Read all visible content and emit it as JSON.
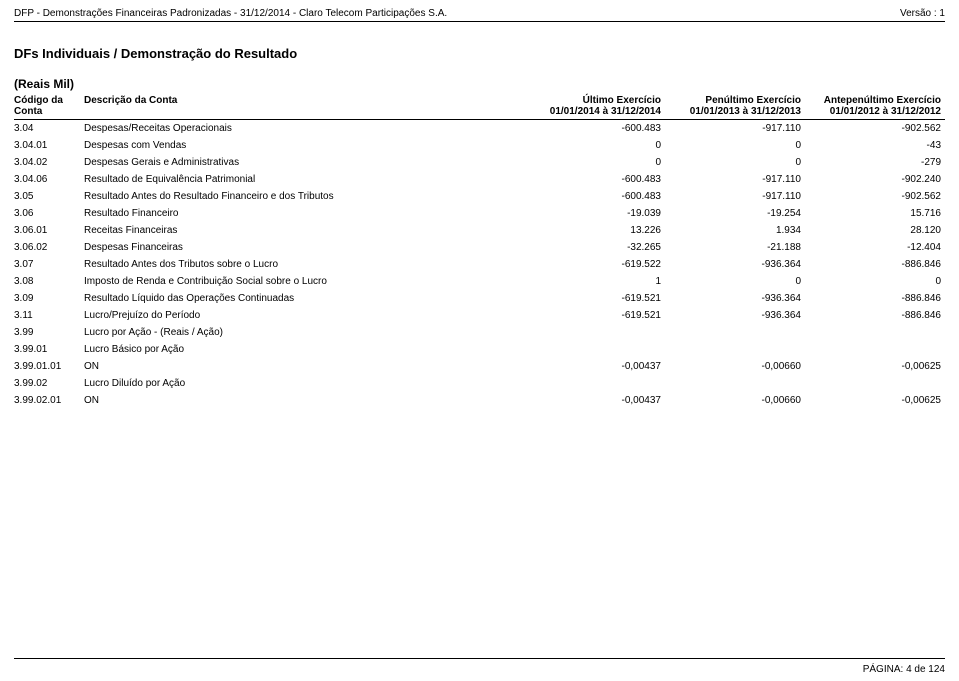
{
  "header": {
    "left": "DFP - Demonstrações Financeiras Padronizadas - 31/12/2014 - Claro Telecom Participações S.A.",
    "right": "Versão : 1"
  },
  "section_title": "DFs Individuais / Demonstração do Resultado",
  "unit_label": "(Reais Mil)",
  "columns": {
    "code": "Código da Conta",
    "desc": "Descrição da Conta",
    "c1_top": "Último Exercício",
    "c1_sub": "01/01/2014 à 31/12/2014",
    "c2_top": "Penúltimo Exercício",
    "c2_sub": "01/01/2013 à 31/12/2013",
    "c3_top": "Antepenúltimo Exercício",
    "c3_sub": "01/01/2012 à 31/12/2012"
  },
  "rows": [
    {
      "code": "3.04",
      "desc": "Despesas/Receitas Operacionais",
      "v1": "-600.483",
      "v2": "-917.110",
      "v3": "-902.562"
    },
    {
      "code": "3.04.01",
      "desc": "Despesas com Vendas",
      "v1": "0",
      "v2": "0",
      "v3": "-43"
    },
    {
      "code": "3.04.02",
      "desc": "Despesas Gerais e Administrativas",
      "v1": "0",
      "v2": "0",
      "v3": "-279"
    },
    {
      "code": "3.04.06",
      "desc": "Resultado de Equivalência Patrimonial",
      "v1": "-600.483",
      "v2": "-917.110",
      "v3": "-902.240"
    },
    {
      "code": "3.05",
      "desc": "Resultado Antes do Resultado Financeiro e dos Tributos",
      "v1": "-600.483",
      "v2": "-917.110",
      "v3": "-902.562"
    },
    {
      "code": "3.06",
      "desc": "Resultado Financeiro",
      "v1": "-19.039",
      "v2": "-19.254",
      "v3": "15.716"
    },
    {
      "code": "3.06.01",
      "desc": "Receitas Financeiras",
      "v1": "13.226",
      "v2": "1.934",
      "v3": "28.120"
    },
    {
      "code": "3.06.02",
      "desc": "Despesas Financeiras",
      "v1": "-32.265",
      "v2": "-21.188",
      "v3": "-12.404"
    },
    {
      "code": "3.07",
      "desc": "Resultado Antes dos Tributos sobre o Lucro",
      "v1": "-619.522",
      "v2": "-936.364",
      "v3": "-886.846"
    },
    {
      "code": "3.08",
      "desc": "Imposto de Renda e Contribuição Social sobre o Lucro",
      "v1": "1",
      "v2": "0",
      "v3": "0"
    },
    {
      "code": "3.09",
      "desc": "Resultado Líquido das Operações Continuadas",
      "v1": "-619.521",
      "v2": "-936.364",
      "v3": "-886.846"
    },
    {
      "code": "3.11",
      "desc": "Lucro/Prejuízo do Período",
      "v1": "-619.521",
      "v2": "-936.364",
      "v3": "-886.846"
    },
    {
      "code": "3.99",
      "desc": "Lucro por Ação - (Reais / Ação)",
      "v1": "",
      "v2": "",
      "v3": ""
    },
    {
      "code": "3.99.01",
      "desc": "Lucro Básico por Ação",
      "v1": "",
      "v2": "",
      "v3": ""
    },
    {
      "code": "3.99.01.01",
      "desc": "ON",
      "v1": "-0,00437",
      "v2": "-0,00660",
      "v3": "-0,00625"
    },
    {
      "code": "3.99.02",
      "desc": "Lucro Diluído por Ação",
      "v1": "",
      "v2": "",
      "v3": ""
    },
    {
      "code": "3.99.02.01",
      "desc": "ON",
      "v1": "-0,00437",
      "v2": "-0,00660",
      "v3": "-0,00625"
    }
  ],
  "footer": "PÁGINA: 4 de 124"
}
